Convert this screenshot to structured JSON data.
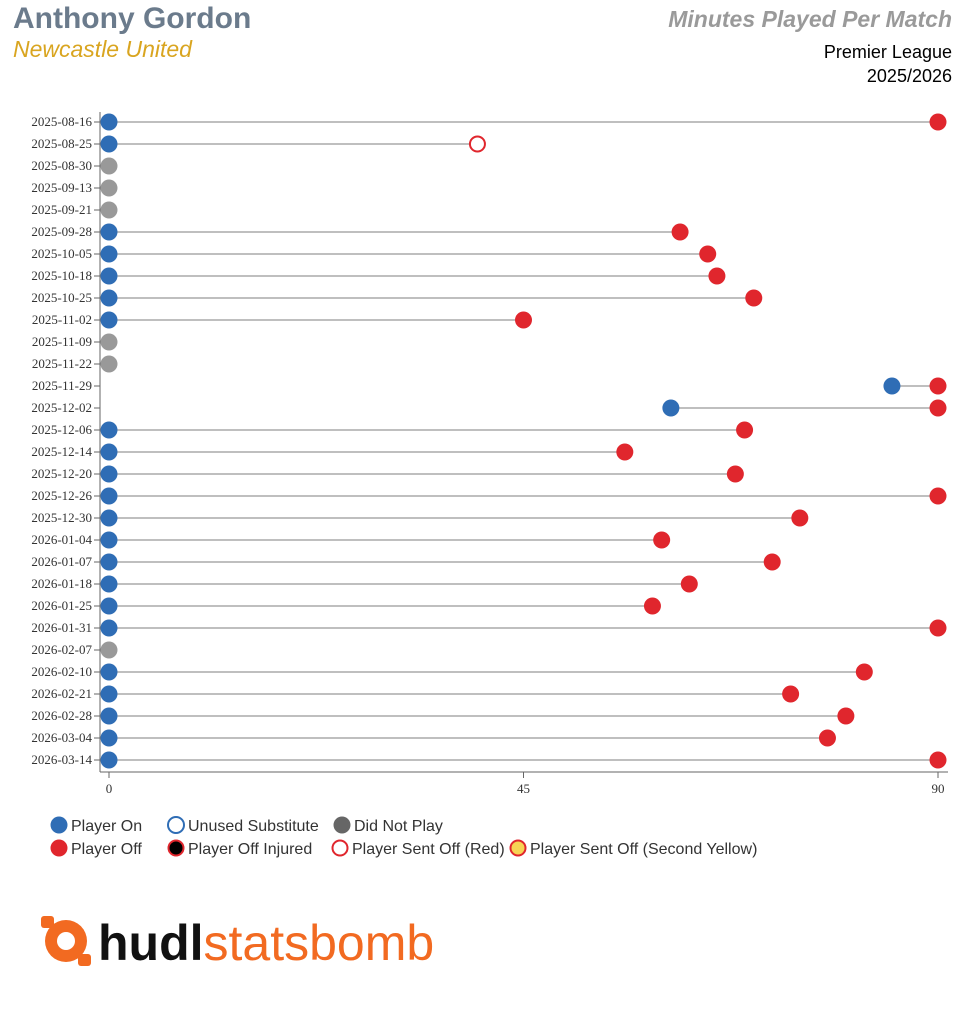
{
  "header": {
    "player_name": "Anthony Gordon",
    "team_name": "Newcastle United",
    "chart_title": "Minutes Played Per Match",
    "competition": "Premier League",
    "season": "2025/2026"
  },
  "colors": {
    "player_on": "#2f6db5",
    "player_off": "#e0262d",
    "did_not_play": "#999999",
    "legend_dnp": "#666666",
    "line": "#999999",
    "yellow": "#f7d354",
    "logo_orange": "#f26a21",
    "logo_black": "#111111"
  },
  "legend": [
    {
      "label": "Player On",
      "kind": "player-on"
    },
    {
      "label": "Unused Substitute",
      "kind": "unused-sub"
    },
    {
      "label": "Did Not Play",
      "kind": "did-not-play"
    },
    {
      "label": "Player Off",
      "kind": "player-off"
    },
    {
      "label": "Player Off Injured",
      "kind": "player-off-injured"
    },
    {
      "label": "Player Sent Off (Red)",
      "kind": "sent-off-red"
    },
    {
      "label": "Player Sent Off (Second Yellow)",
      "kind": "sent-off-second-yellow"
    }
  ],
  "logo": {
    "part1": "hudl",
    "part2": "statsbomb"
  },
  "chart_data": {
    "type": "dumbbell",
    "title": "Minutes Played Per Match",
    "x_ticks": [
      0,
      45,
      90
    ],
    "xlim": [
      0,
      90
    ],
    "matches": [
      {
        "date": "2025-08-16",
        "status": "played",
        "on": 0,
        "off": 90,
        "off_type": "off"
      },
      {
        "date": "2025-08-25",
        "status": "played",
        "on": 0,
        "off": 40,
        "off_type": "red"
      },
      {
        "date": "2025-08-30",
        "status": "dnp"
      },
      {
        "date": "2025-09-13",
        "status": "dnp"
      },
      {
        "date": "2025-09-21",
        "status": "dnp"
      },
      {
        "date": "2025-09-28",
        "status": "played",
        "on": 0,
        "off": 62,
        "off_type": "off"
      },
      {
        "date": "2025-10-05",
        "status": "played",
        "on": 0,
        "off": 65,
        "off_type": "off"
      },
      {
        "date": "2025-10-18",
        "status": "played",
        "on": 0,
        "off": 66,
        "off_type": "off"
      },
      {
        "date": "2025-10-25",
        "status": "played",
        "on": 0,
        "off": 70,
        "off_type": "off"
      },
      {
        "date": "2025-11-02",
        "status": "played",
        "on": 0,
        "off": 45,
        "off_type": "off"
      },
      {
        "date": "2025-11-09",
        "status": "dnp"
      },
      {
        "date": "2025-11-22",
        "status": "dnp"
      },
      {
        "date": "2025-11-29",
        "status": "played",
        "on": 85,
        "off": 90,
        "off_type": "off"
      },
      {
        "date": "2025-12-02",
        "status": "played",
        "on": 61,
        "off": 90,
        "off_type": "off"
      },
      {
        "date": "2025-12-06",
        "status": "played",
        "on": 0,
        "off": 69,
        "off_type": "off"
      },
      {
        "date": "2025-12-14",
        "status": "played",
        "on": 0,
        "off": 56,
        "off_type": "off"
      },
      {
        "date": "2025-12-20",
        "status": "played",
        "on": 0,
        "off": 68,
        "off_type": "off"
      },
      {
        "date": "2025-12-26",
        "status": "played",
        "on": 0,
        "off": 90,
        "off_type": "off"
      },
      {
        "date": "2025-12-30",
        "status": "played",
        "on": 0,
        "off": 75,
        "off_type": "off"
      },
      {
        "date": "2026-01-04",
        "status": "played",
        "on": 0,
        "off": 60,
        "off_type": "off"
      },
      {
        "date": "2026-01-07",
        "status": "played",
        "on": 0,
        "off": 72,
        "off_type": "off"
      },
      {
        "date": "2026-01-18",
        "status": "played",
        "on": 0,
        "off": 63,
        "off_type": "off"
      },
      {
        "date": "2026-01-25",
        "status": "played",
        "on": 0,
        "off": 59,
        "off_type": "off"
      },
      {
        "date": "2026-01-31",
        "status": "played",
        "on": 0,
        "off": 90,
        "off_type": "off"
      },
      {
        "date": "2026-02-07",
        "status": "dnp"
      },
      {
        "date": "2026-02-10",
        "status": "played",
        "on": 0,
        "off": 82,
        "off_type": "off"
      },
      {
        "date": "2026-02-21",
        "status": "played",
        "on": 0,
        "off": 74,
        "off_type": "off"
      },
      {
        "date": "2026-02-28",
        "status": "played",
        "on": 0,
        "off": 80,
        "off_type": "off"
      },
      {
        "date": "2026-03-04",
        "status": "played",
        "on": 0,
        "off": 78,
        "off_type": "off"
      },
      {
        "date": "2026-03-14",
        "status": "played",
        "on": 0,
        "off": 90,
        "off_type": "off"
      }
    ]
  }
}
